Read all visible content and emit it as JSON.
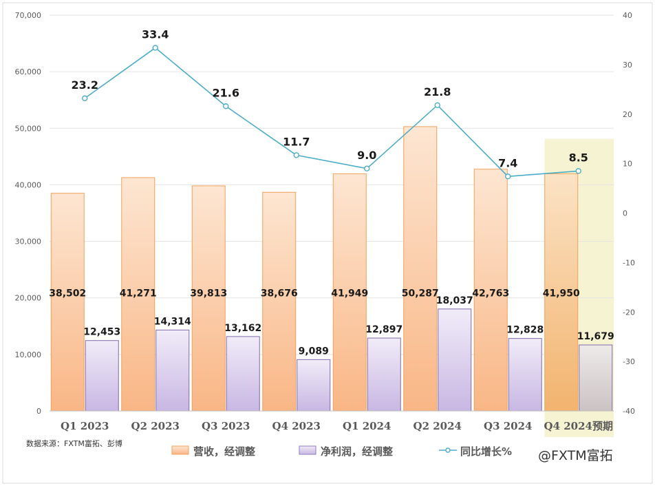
{
  "chart_data": {
    "type": "bar",
    "categories": [
      "Q1 2023",
      "Q2 2023",
      "Q3 2023",
      "Q4 2023",
      "Q1 2024",
      "Q2 2024",
      "Q3 2024",
      "Q4 2024预期"
    ],
    "series": [
      {
        "name": "营收，经调整",
        "type": "bar",
        "axis": "left",
        "color": "#f4a460",
        "values": [
          38502,
          41271,
          39813,
          38676,
          41949,
          50287,
          42763,
          41950
        ],
        "labels": [
          "38,502",
          "41,271",
          "39,813",
          "38,676",
          "41,949",
          "50,287",
          "42,763",
          "41,950"
        ]
      },
      {
        "name": "净利润，经调整",
        "type": "bar",
        "axis": "left",
        "color": "#b9a3d9",
        "values": [
          12453,
          14314,
          13162,
          9089,
          12897,
          18037,
          12828,
          11679
        ],
        "labels": [
          "12,453",
          "14,314",
          "13,162",
          "9,089",
          "12,897",
          "18,037",
          "12,828",
          "11,679"
        ]
      },
      {
        "name": "同比增长%",
        "type": "line",
        "axis": "right",
        "color": "#4bacc6",
        "values": [
          23.2,
          33.4,
          21.6,
          11.7,
          9.0,
          21.8,
          7.4,
          8.5
        ],
        "labels": [
          "23.2",
          "33.4",
          "21.6",
          "11.7",
          "9.0",
          "21.8",
          "7.4",
          "8.5"
        ]
      }
    ],
    "ylim": [
      0,
      70000
    ],
    "y2lim": [
      -40,
      40
    ],
    "yticks": [
      "0",
      "10,000",
      "20,000",
      "30,000",
      "40,000",
      "50,000",
      "60,000",
      "70,000"
    ],
    "y2ticks": [
      "-40",
      "-30",
      "-20",
      "-10",
      "0",
      "10",
      "20",
      "30",
      "40"
    ],
    "grid": true,
    "legend_position": "bottom",
    "highlighted_category": "Q4 2024预期",
    "source_note": "数据来源：FXTM富拓、彭博",
    "watermark": "@FXTM富拓"
  }
}
